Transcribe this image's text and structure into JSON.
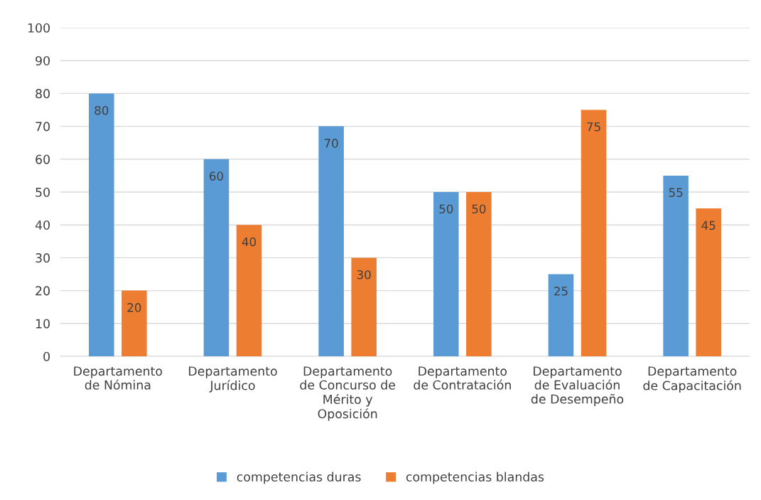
{
  "chart_data": {
    "type": "bar",
    "categories": [
      "Departamento\nde Nómina",
      "Departamento\nJurídico",
      "Departamento\nde Concurso de\nMérito y\nOposición",
      "Departamento\nde Contratación",
      "Departamento\nde Evaluación\nde Desempeño",
      "Departamento\nde Capacitación"
    ],
    "series": [
      {
        "name": "competencias duras",
        "color": "#5b9bd5",
        "values": [
          80,
          60,
          70,
          50,
          25,
          55
        ]
      },
      {
        "name": "competencias blandas",
        "color": "#ed7d31",
        "values": [
          20,
          40,
          30,
          50,
          75,
          45
        ]
      }
    ],
    "ylim": [
      0,
      100
    ],
    "yticks": [
      0,
      10,
      20,
      30,
      40,
      50,
      60,
      70,
      80,
      90,
      100
    ],
    "grid": "y",
    "legend": "bottom",
    "data_labels": true
  }
}
